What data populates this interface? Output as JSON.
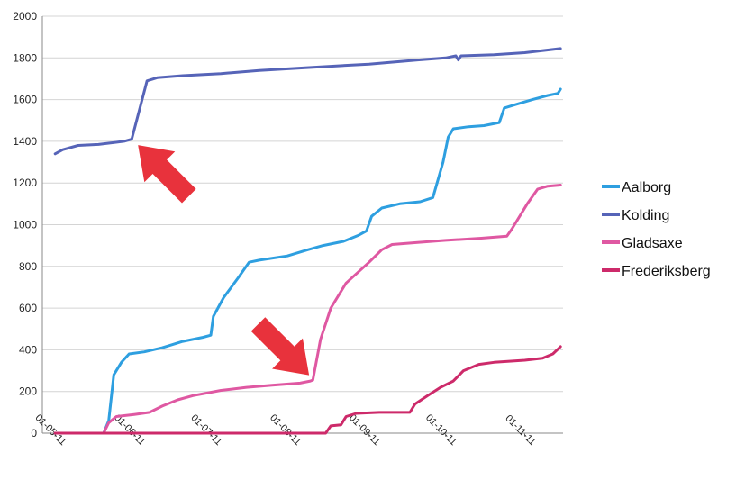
{
  "chart_data": {
    "type": "line",
    "title": "",
    "xlabel": "",
    "ylabel": "",
    "x_ticks": [
      "01-05-11",
      "01-06-11",
      "01-07-11",
      "01-08-11",
      "01-09-11",
      "01-10-11",
      "01-11-11"
    ],
    "ylim": [
      0,
      2000
    ],
    "y_ticks": [
      0,
      200,
      400,
      600,
      800,
      1000,
      1200,
      1400,
      1600,
      1800,
      2000
    ],
    "grid": "horizontal",
    "legend_position": "right",
    "series": [
      {
        "name": "Aalborg",
        "color": "#2e9fe0",
        "points": [
          [
            "2011-05-01",
            0
          ],
          [
            "2011-05-14",
            0
          ],
          [
            "2011-05-20",
            0
          ],
          [
            "2011-05-22",
            60
          ],
          [
            "2011-05-24",
            280
          ],
          [
            "2011-05-27",
            340
          ],
          [
            "2011-05-30",
            380
          ],
          [
            "2011-06-05",
            390
          ],
          [
            "2011-06-12",
            410
          ],
          [
            "2011-06-20",
            440
          ],
          [
            "2011-06-28",
            460
          ],
          [
            "2011-07-01",
            470
          ],
          [
            "2011-07-02",
            560
          ],
          [
            "2011-07-06",
            650
          ],
          [
            "2011-07-12",
            750
          ],
          [
            "2011-07-16",
            820
          ],
          [
            "2011-07-20",
            830
          ],
          [
            "2011-07-31",
            850
          ],
          [
            "2011-08-08",
            880
          ],
          [
            "2011-08-14",
            900
          ],
          [
            "2011-08-22",
            920
          ],
          [
            "2011-08-28",
            950
          ],
          [
            "2011-08-31",
            970
          ],
          [
            "2011-09-02",
            1040
          ],
          [
            "2011-09-06",
            1080
          ],
          [
            "2011-09-13",
            1100
          ],
          [
            "2011-09-21",
            1110
          ],
          [
            "2011-09-26",
            1130
          ],
          [
            "2011-09-30",
            1300
          ],
          [
            "2011-10-02",
            1420
          ],
          [
            "2011-10-04",
            1460
          ],
          [
            "2011-10-10",
            1470
          ],
          [
            "2011-10-16",
            1475
          ],
          [
            "2011-10-22",
            1490
          ],
          [
            "2011-10-24",
            1560
          ],
          [
            "2011-10-28",
            1575
          ],
          [
            "2011-11-04",
            1600
          ],
          [
            "2011-11-10",
            1620
          ],
          [
            "2011-11-14",
            1630
          ],
          [
            "2011-11-15",
            1650
          ]
        ]
      },
      {
        "name": "Kolding",
        "color": "#5664b8",
        "points": [
          [
            "2011-05-01",
            1340
          ],
          [
            "2011-05-04",
            1360
          ],
          [
            "2011-05-10",
            1380
          ],
          [
            "2011-05-18",
            1385
          ],
          [
            "2011-05-28",
            1400
          ],
          [
            "2011-05-31",
            1410
          ],
          [
            "2011-06-03",
            1550
          ],
          [
            "2011-06-06",
            1690
          ],
          [
            "2011-06-10",
            1705
          ],
          [
            "2011-06-20",
            1715
          ],
          [
            "2011-07-05",
            1725
          ],
          [
            "2011-07-20",
            1740
          ],
          [
            "2011-08-10",
            1755
          ],
          [
            "2011-09-01",
            1770
          ],
          [
            "2011-09-20",
            1790
          ],
          [
            "2011-10-01",
            1800
          ],
          [
            "2011-10-05",
            1810
          ],
          [
            "2011-10-06",
            1790
          ],
          [
            "2011-10-07",
            1810
          ],
          [
            "2011-10-20",
            1815
          ],
          [
            "2011-11-01",
            1825
          ],
          [
            "2011-11-15",
            1845
          ]
        ]
      },
      {
        "name": "Gladsaxe",
        "color": "#df58a2",
        "points": [
          [
            "2011-05-01",
            0
          ],
          [
            "2011-05-20",
            0
          ],
          [
            "2011-05-22",
            50
          ],
          [
            "2011-05-25",
            80
          ],
          [
            "2011-06-01",
            90
          ],
          [
            "2011-06-07",
            100
          ],
          [
            "2011-06-12",
            130
          ],
          [
            "2011-06-18",
            160
          ],
          [
            "2011-06-24",
            180
          ],
          [
            "2011-07-05",
            205
          ],
          [
            "2011-07-15",
            220
          ],
          [
            "2011-07-25",
            230
          ],
          [
            "2011-08-05",
            240
          ],
          [
            "2011-08-09",
            250
          ],
          [
            "2011-08-10",
            255
          ],
          [
            "2011-08-13",
            450
          ],
          [
            "2011-08-17",
            600
          ],
          [
            "2011-08-23",
            720
          ],
          [
            "2011-09-01",
            820
          ],
          [
            "2011-09-06",
            880
          ],
          [
            "2011-09-10",
            905
          ],
          [
            "2011-09-20",
            915
          ],
          [
            "2011-10-01",
            925
          ],
          [
            "2011-10-15",
            935
          ],
          [
            "2011-10-25",
            945
          ],
          [
            "2011-10-27",
            980
          ],
          [
            "2011-11-02",
            1100
          ],
          [
            "2011-11-06",
            1170
          ],
          [
            "2011-11-10",
            1185
          ],
          [
            "2011-11-15",
            1190
          ]
        ]
      },
      {
        "name": "Frederiksberg",
        "color": "#cd2a6a",
        "points": [
          [
            "2011-05-01",
            0
          ],
          [
            "2011-08-15",
            0
          ],
          [
            "2011-08-17",
            35
          ],
          [
            "2011-08-21",
            40
          ],
          [
            "2011-08-23",
            80
          ],
          [
            "2011-08-27",
            95
          ],
          [
            "2011-09-05",
            100
          ],
          [
            "2011-09-17",
            100
          ],
          [
            "2011-09-19",
            140
          ],
          [
            "2011-09-24",
            180
          ],
          [
            "2011-09-29",
            220
          ],
          [
            "2011-10-04",
            250
          ],
          [
            "2011-10-08",
            300
          ],
          [
            "2011-10-14",
            330
          ],
          [
            "2011-10-20",
            340
          ],
          [
            "2011-11-01",
            350
          ],
          [
            "2011-11-08",
            360
          ],
          [
            "2011-11-12",
            380
          ],
          [
            "2011-11-15",
            415
          ]
        ]
      }
    ],
    "annotations": [
      {
        "shape": "arrow",
        "direction": "up-left",
        "color": "#e8323c",
        "points_to": "Kolding",
        "at_date": "2011-06-01",
        "at_value": 1400
      },
      {
        "shape": "arrow",
        "direction": "down-right",
        "color": "#e8323c",
        "points_to": "Gladsaxe",
        "at_date": "2011-08-10",
        "at_value": 260
      }
    ]
  }
}
